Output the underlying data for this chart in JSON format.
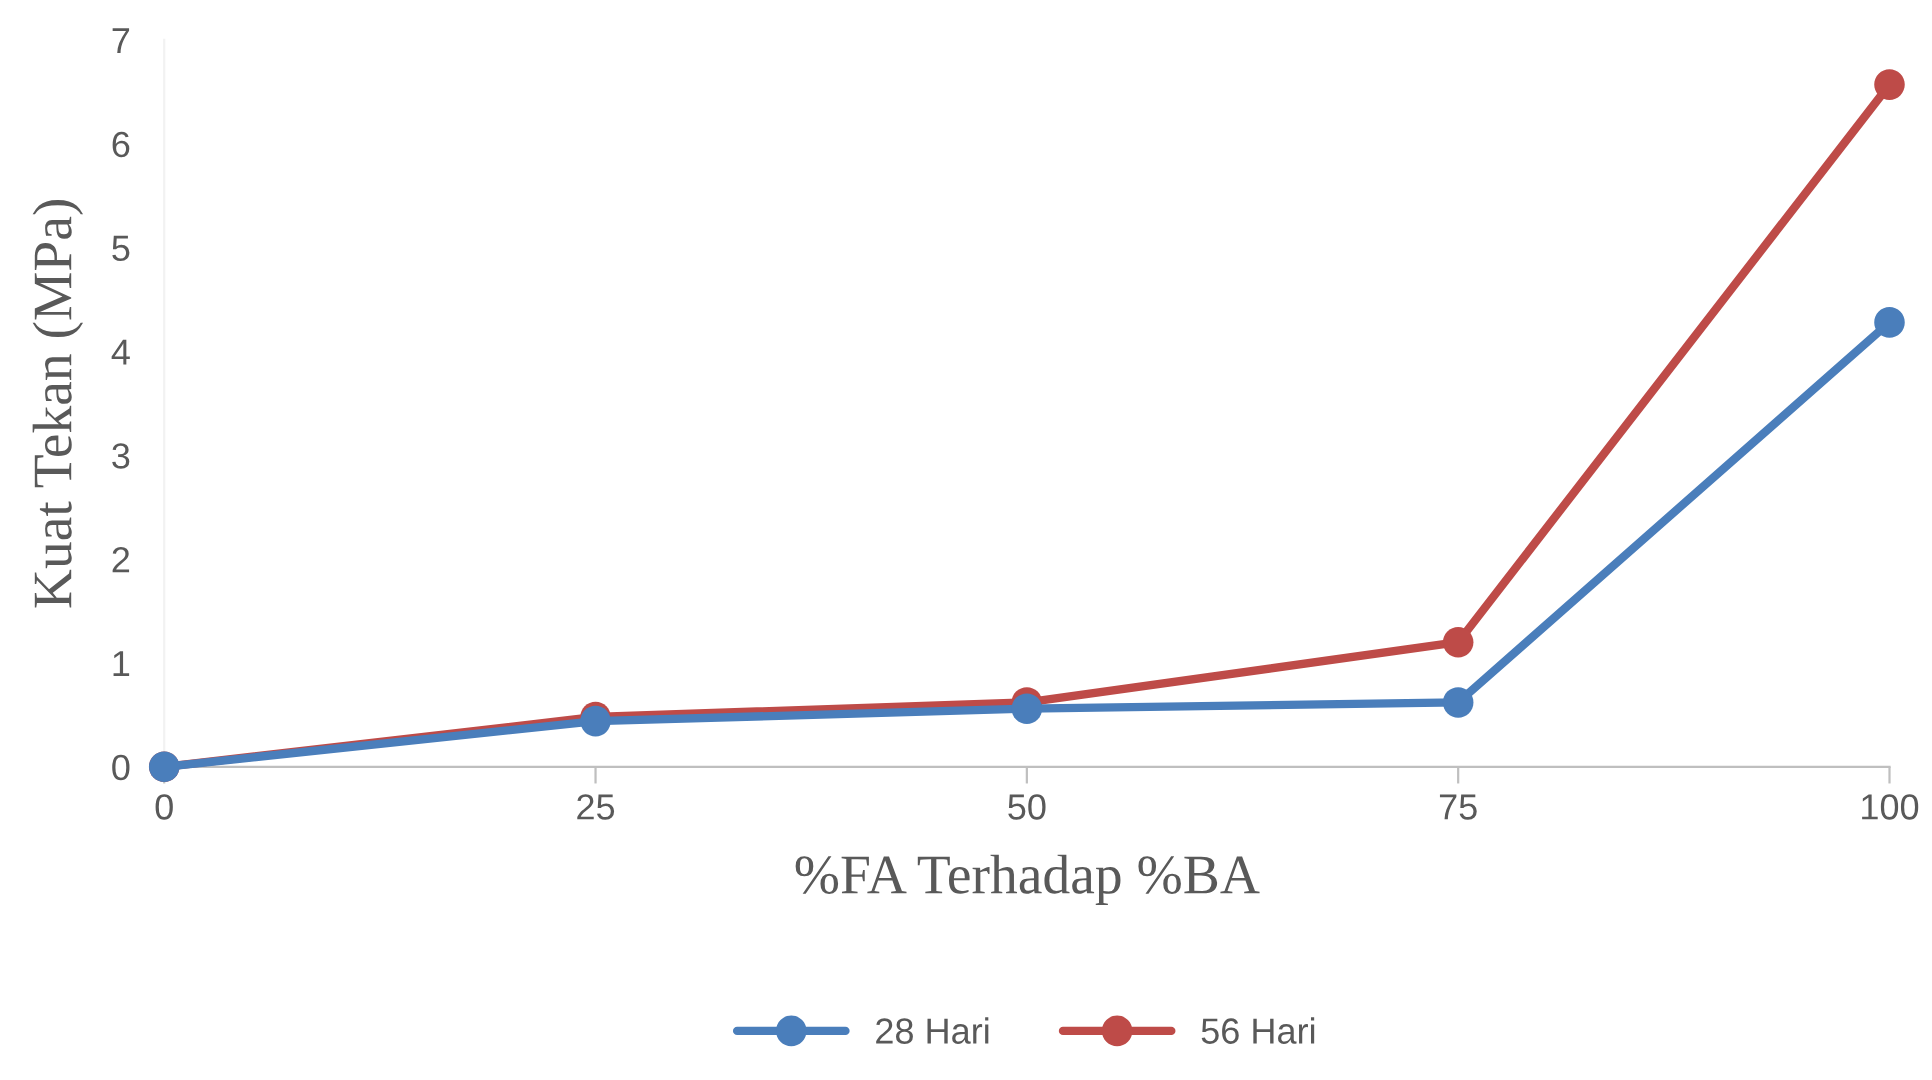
{
  "chart_data": {
    "type": "line",
    "xlabel": "%FA Terhadap %BA",
    "ylabel": "Kuat Tekan (MPa)",
    "x": [
      0,
      25,
      50,
      75,
      100
    ],
    "series": [
      {
        "name": "28 Hari",
        "color": "#4a7ebb",
        "values": [
          0,
          0.44,
          0.56,
          0.62,
          4.28
        ]
      },
      {
        "name": "56 Hari",
        "color": "#be4b48",
        "values": [
          0,
          0.48,
          0.62,
          1.2,
          6.57
        ]
      }
    ],
    "xlim": [
      0,
      100
    ],
    "xticks": [
      0,
      25,
      50,
      75,
      100
    ],
    "ylim": [
      0,
      7
    ],
    "yticks": [
      0,
      1,
      2,
      3,
      4,
      5,
      6,
      7
    ],
    "grid": false,
    "legend": "bottom",
    "marker": "circle",
    "line_style": "solid"
  }
}
